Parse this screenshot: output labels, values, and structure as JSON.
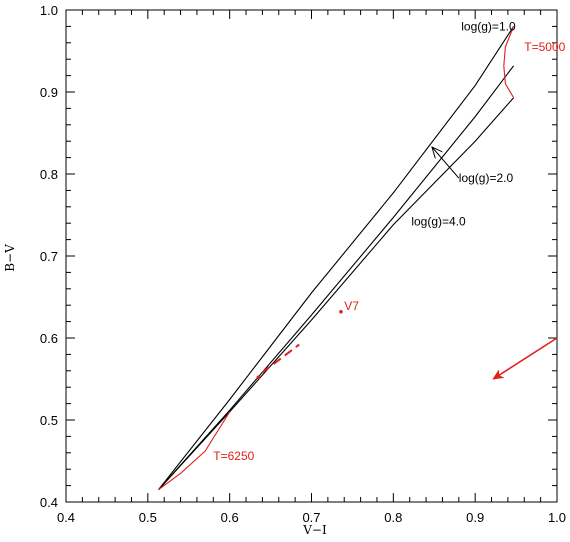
{
  "chart_data": {
    "type": "line",
    "xlabel": "V−I",
    "ylabel": "B−V",
    "xlim": [
      0.4,
      1.0
    ],
    "ylim": [
      0.4,
      1.0
    ],
    "xticks": [
      0.4,
      0.5,
      0.6,
      0.7,
      0.8,
      0.9,
      1.0
    ],
    "yticks": [
      0.4,
      0.5,
      0.6,
      0.7,
      0.8,
      0.9,
      1.0
    ],
    "xtick_labels": [
      "0.4",
      "0.5",
      "0.6",
      "0.7",
      "0.8",
      "0.9",
      "1.0"
    ],
    "ytick_labels": [
      "0.4",
      "0.5",
      "0.6",
      "0.7",
      "0.8",
      "0.9",
      "1.0"
    ],
    "grid": false,
    "series": [
      {
        "name": "log(g)=1.0",
        "color": "#000000",
        "x": [
          0.513,
          0.6,
          0.7,
          0.8,
          0.9,
          0.947
        ],
        "y": [
          0.415,
          0.525,
          0.655,
          0.777,
          0.908,
          0.98
        ]
      },
      {
        "name": "log(g)=2.0",
        "color": "#000000",
        "x": [
          0.513,
          0.6,
          0.7,
          0.8,
          0.9,
          0.947
        ],
        "y": [
          0.415,
          0.512,
          0.628,
          0.747,
          0.87,
          0.932
        ]
      },
      {
        "name": "log(g)=4.0",
        "color": "#000000",
        "x": [
          0.513,
          0.6,
          0.7,
          0.8,
          0.9,
          0.947
        ],
        "y": [
          0.415,
          0.51,
          0.622,
          0.738,
          0.84,
          0.893
        ]
      },
      {
        "name": "T=5000",
        "color": "#e0201b",
        "x": [
          0.947,
          0.937,
          0.935,
          0.937,
          0.947
        ],
        "y": [
          0.98,
          0.955,
          0.932,
          0.91,
          0.893
        ]
      },
      {
        "name": "T=6250",
        "color": "#e0201b",
        "x": [
          0.513,
          0.54,
          0.57,
          0.6
        ],
        "y": [
          0.415,
          0.435,
          0.462,
          0.51
        ]
      }
    ],
    "points": [
      {
        "label": "V7",
        "x": 0.736,
        "y": 0.632,
        "color": "#e0201b"
      },
      {
        "label": "",
        "x": 0.635,
        "y": 0.552,
        "color": "#e0201b"
      }
    ],
    "segments": [
      {
        "x1": 0.64,
        "y1": 0.558,
        "x2": 0.685,
        "y2": 0.592,
        "color": "#e0201b"
      }
    ],
    "arrows": [
      {
        "x1": 1.0,
        "y1": 0.6,
        "x2": 0.922,
        "y2": 0.55,
        "color": "#e0201b"
      },
      {
        "x1": 0.88,
        "y1": 0.795,
        "x2": 0.848,
        "y2": 0.832,
        "color": "#000000"
      }
    ],
    "annotations": [
      {
        "text": "log(g)=1.0",
        "x": 0.883,
        "y": 0.975,
        "color": "#000000"
      },
      {
        "text": "T=5000",
        "x": 0.96,
        "y": 0.95,
        "color": "#e0201b"
      },
      {
        "text": "log(g)=2.0",
        "x": 0.88,
        "y": 0.79,
        "color": "#000000"
      },
      {
        "text": "log(g)=4.0",
        "x": 0.822,
        "y": 0.737,
        "color": "#000000"
      },
      {
        "text": "V7",
        "x": 0.74,
        "y": 0.634,
        "color": "#e0201b"
      },
      {
        "text": "T=6250",
        "x": 0.58,
        "y": 0.451,
        "color": "#e0201b"
      }
    ]
  }
}
